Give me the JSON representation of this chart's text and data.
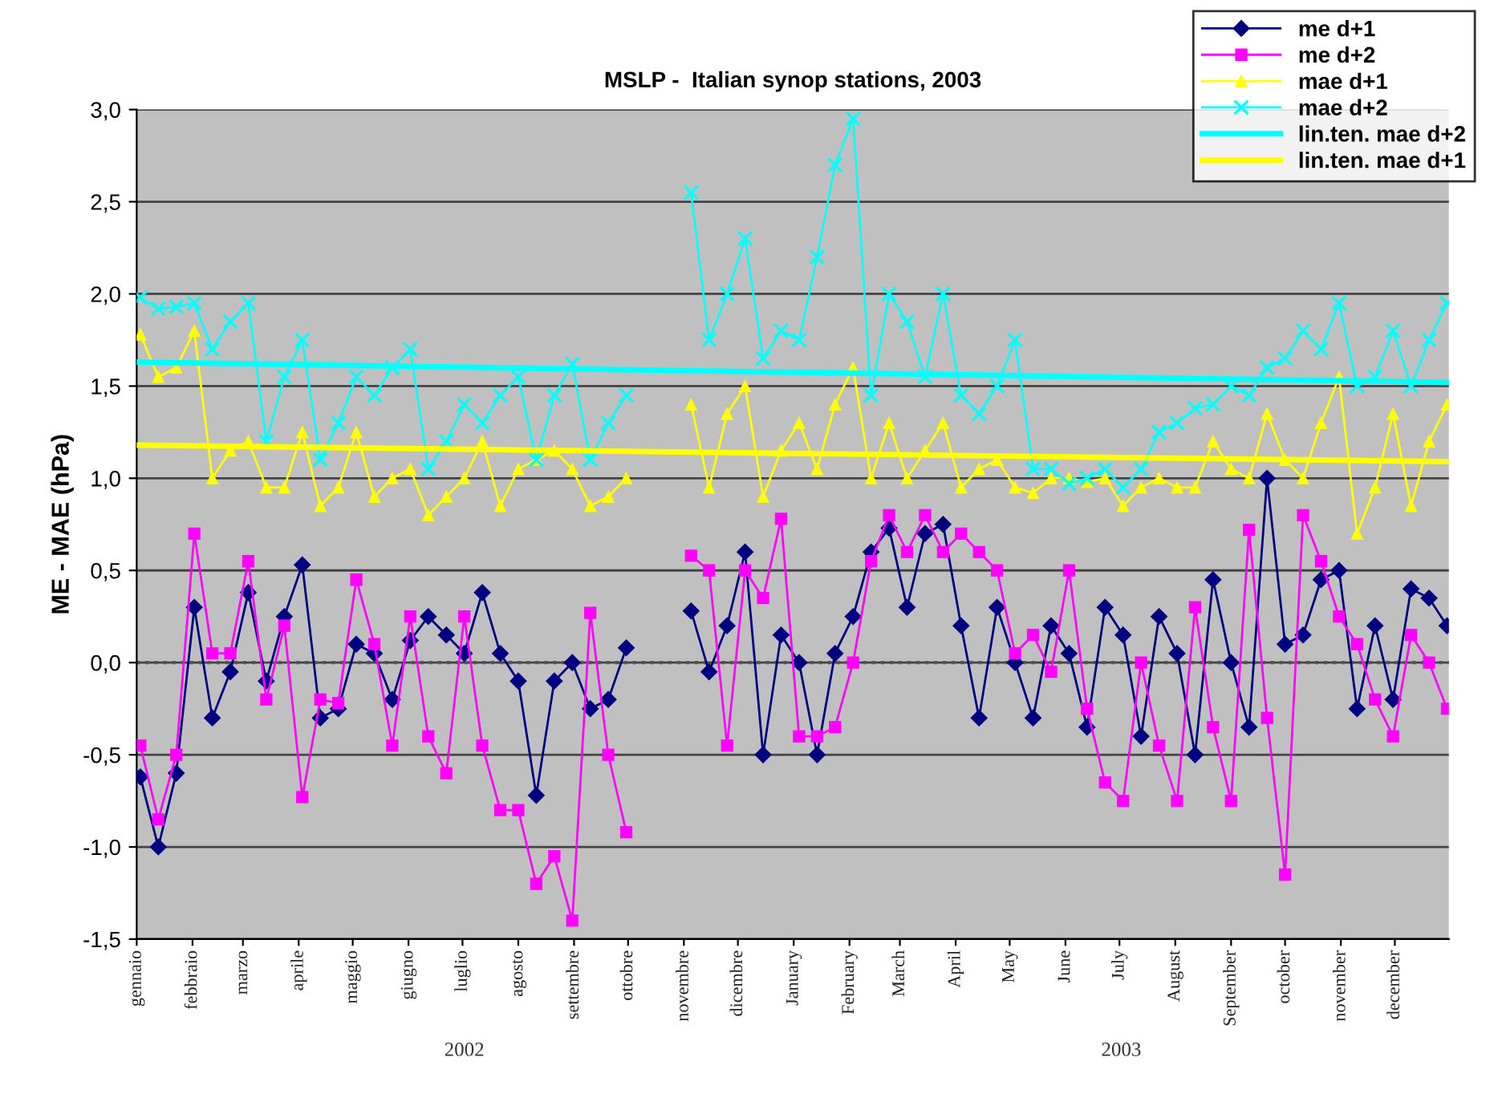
{
  "chart_data": {
    "type": "line",
    "title": "MSLP -  Italian synop stations, 2003",
    "ylabel": "ME - MAE (hPa)",
    "x": [
      "2002-01-03",
      "2002-01-13",
      "2002-01-23",
      "2002-02-02",
      "2002-02-12",
      "2002-02-22",
      "2002-03-04",
      "2002-03-14",
      "2002-03-24",
      "2002-04-03",
      "2002-04-13",
      "2002-04-23",
      "2002-05-03",
      "2002-05-13",
      "2002-05-23",
      "2002-06-02",
      "2002-06-12",
      "2002-06-22",
      "2002-07-02",
      "2002-07-12",
      "2002-07-22",
      "2002-08-01",
      "2002-08-11",
      "2002-08-21",
      "2002-08-31",
      "2002-09-10",
      "2002-09-20",
      "2002-09-30",
      "2002-10-20",
      "2002-11-05",
      "2002-11-15",
      "2002-11-25",
      "2002-12-05",
      "2002-12-15",
      "2002-12-25",
      "2003-01-04",
      "2003-01-14",
      "2003-01-24",
      "2003-02-03",
      "2003-02-13",
      "2003-02-23",
      "2003-03-05",
      "2003-03-15",
      "2003-03-25",
      "2003-04-04",
      "2003-04-14",
      "2003-04-24",
      "2003-05-04",
      "2003-05-14",
      "2003-05-24",
      "2003-06-03",
      "2003-06-13",
      "2003-06-23",
      "2003-07-03",
      "2003-07-13",
      "2003-07-23",
      "2003-08-02",
      "2003-08-12",
      "2003-08-22",
      "2003-09-01",
      "2003-09-11",
      "2003-09-21",
      "2003-10-01",
      "2003-10-11",
      "2003-10-21",
      "2003-10-31",
      "2003-11-10",
      "2003-11-20",
      "2003-11-30",
      "2003-12-10",
      "2003-12-20",
      "2003-12-30"
    ],
    "series": [
      {
        "name": "me d+1",
        "color": "#000080",
        "marker": "diamond",
        "values": [
          -0.62,
          -1.0,
          -0.6,
          0.3,
          -0.3,
          -0.05,
          0.38,
          -0.1,
          0.25,
          0.53,
          -0.3,
          -0.25,
          0.1,
          0.05,
          -0.2,
          0.12,
          0.25,
          0.15,
          0.05,
          0.38,
          0.05,
          -0.1,
          -0.72,
          -0.1,
          0.0,
          -0.25,
          -0.2,
          0.08,
          null,
          0.28,
          -0.05,
          0.2,
          0.6,
          -0.5,
          0.15,
          0.0,
          -0.5,
          0.05,
          0.25,
          0.6,
          0.73,
          0.3,
          0.7,
          0.75,
          0.2,
          -0.3,
          0.3,
          0.0,
          -0.3,
          0.2,
          0.05,
          -0.35,
          0.3,
          0.15,
          -0.4,
          0.25,
          0.05,
          -0.5,
          0.45,
          0.0,
          -0.35,
          1.0,
          0.1,
          0.15,
          0.45,
          0.5,
          -0.25,
          0.2,
          -0.2,
          0.4,
          0.35,
          0.2
        ]
      },
      {
        "name": "me d+2",
        "color": "#ff00ff",
        "marker": "square",
        "values": [
          -0.45,
          -0.85,
          -0.5,
          0.7,
          0.05,
          0.05,
          0.55,
          -0.2,
          0.2,
          -0.73,
          -0.2,
          -0.22,
          0.45,
          0.1,
          -0.45,
          0.25,
          -0.4,
          -0.6,
          0.25,
          -0.45,
          -0.8,
          -0.8,
          -1.2,
          -1.05,
          -1.4,
          0.27,
          -0.5,
          -0.92,
          null,
          0.58,
          0.5,
          -0.45,
          0.5,
          0.35,
          0.78,
          -0.4,
          -0.4,
          -0.35,
          0.0,
          0.55,
          0.8,
          0.6,
          0.8,
          0.6,
          0.7,
          0.6,
          0.5,
          0.05,
          0.15,
          -0.05,
          0.5,
          -0.25,
          -0.65,
          -0.75,
          0.0,
          -0.45,
          -0.75,
          0.3,
          -0.35,
          -0.75,
          0.72,
          -0.3,
          -1.15,
          0.8,
          0.55,
          0.25,
          0.1,
          -0.2,
          -0.4,
          0.15,
          0.0,
          -0.25
        ]
      },
      {
        "name": "mae d+1",
        "color": "#ffff00",
        "marker": "triangle",
        "values": [
          1.78,
          1.55,
          1.6,
          1.8,
          1.0,
          1.15,
          1.2,
          0.95,
          0.95,
          1.25,
          0.85,
          0.95,
          1.25,
          0.9,
          1.0,
          1.05,
          0.8,
          0.9,
          1.0,
          1.2,
          0.85,
          1.05,
          1.1,
          1.15,
          1.05,
          0.85,
          0.9,
          1.0,
          null,
          1.4,
          0.95,
          1.35,
          1.5,
          0.9,
          1.15,
          1.3,
          1.05,
          1.4,
          1.6,
          1.0,
          1.3,
          1.0,
          1.15,
          1.3,
          0.95,
          1.05,
          1.1,
          0.95,
          0.92,
          1.0,
          1.0,
          0.98,
          1.0,
          0.85,
          0.95,
          1.0,
          0.95,
          0.95,
          1.2,
          1.05,
          1.0,
          1.35,
          1.1,
          1.0,
          1.3,
          1.55,
          0.7,
          0.95,
          1.35,
          0.85,
          1.2,
          1.4
        ]
      },
      {
        "name": "mae d+2",
        "color": "#00ffff",
        "marker": "cross",
        "values": [
          1.98,
          1.92,
          1.93,
          1.95,
          1.7,
          1.85,
          1.95,
          1.2,
          1.55,
          1.75,
          1.1,
          1.3,
          1.55,
          1.45,
          1.6,
          1.7,
          1.05,
          1.2,
          1.4,
          1.3,
          1.45,
          1.55,
          1.1,
          1.45,
          1.62,
          1.1,
          1.3,
          1.45,
          null,
          2.55,
          1.75,
          2.0,
          2.3,
          1.65,
          1.8,
          1.75,
          2.2,
          2.7,
          2.95,
          1.45,
          2.0,
          1.85,
          1.55,
          2.0,
          1.45,
          1.35,
          1.5,
          1.75,
          1.05,
          1.05,
          0.97,
          1.0,
          1.05,
          0.95,
          1.05,
          1.25,
          1.3,
          1.38,
          1.4,
          1.5,
          1.45,
          1.6,
          1.65,
          1.8,
          1.7,
          1.95,
          1.5,
          1.55,
          1.8,
          1.5,
          1.75,
          1.95
        ]
      },
      {
        "name": "lin.ten. mae d+2",
        "color": "#00ffff",
        "marker": "none",
        "x": [
          "2002-01-01",
          "2003-12-31"
        ],
        "values": [
          1.63,
          1.52
        ]
      },
      {
        "name": "lin.ten. mae d+1",
        "color": "#ffff00",
        "marker": "none",
        "x": [
          "2002-01-01",
          "2003-12-31"
        ],
        "values": [
          1.18,
          1.09
        ]
      }
    ],
    "xlim": [
      "2002-01-01",
      "2003-12-31"
    ],
    "xticks": [
      {
        "value": "2002-01-01",
        "label": "gennaio"
      },
      {
        "value": "2002-02-01",
        "label": "febbraio"
      },
      {
        "value": "2002-03-01",
        "label": "marzo"
      },
      {
        "value": "2002-04-01",
        "label": "aprile"
      },
      {
        "value": "2002-05-01",
        "label": "maggio"
      },
      {
        "value": "2002-06-01",
        "label": "giugno"
      },
      {
        "value": "2002-07-01",
        "label": "luglio"
      },
      {
        "value": "2002-08-01",
        "label": "agosto"
      },
      {
        "value": "2002-09-01",
        "label": "settembre"
      },
      {
        "value": "2002-10-01",
        "label": "ottobre"
      },
      {
        "value": "2002-11-01",
        "label": "novembre"
      },
      {
        "value": "2002-12-01",
        "label": "dicembre"
      },
      {
        "value": "2003-01-01",
        "label": "January"
      },
      {
        "value": "2003-02-01",
        "label": "February"
      },
      {
        "value": "2003-03-01",
        "label": "March"
      },
      {
        "value": "2003-04-01",
        "label": "April"
      },
      {
        "value": "2003-05-01",
        "label": "May"
      },
      {
        "value": "2003-06-01",
        "label": "June"
      },
      {
        "value": "2003-07-01",
        "label": "July"
      },
      {
        "value": "2003-08-01",
        "label": "August"
      },
      {
        "value": "2003-09-01",
        "label": "September"
      },
      {
        "value": "2003-10-01",
        "label": "october"
      },
      {
        "value": "2003-11-01",
        "label": "november"
      },
      {
        "value": "2003-12-01",
        "label": "december"
      }
    ],
    "ylim": [
      -1.5,
      3.0
    ],
    "yticks": [
      {
        "value": -1.5,
        "label": "-1,5"
      },
      {
        "value": -1.0,
        "label": "-1,0"
      },
      {
        "value": -0.5,
        "label": "-0,5"
      },
      {
        "value": 0.0,
        "label": "0,0"
      },
      {
        "value": 0.5,
        "label": "0,5"
      },
      {
        "value": 1.0,
        "label": "1,0"
      },
      {
        "value": 1.5,
        "label": "1,5"
      },
      {
        "value": 2.0,
        "label": "2,0"
      },
      {
        "value": 2.5,
        "label": "2,5"
      },
      {
        "value": 3.0,
        "label": "3,0"
      }
    ],
    "annotations": [
      "2002",
      "2003"
    ],
    "ref_lines": [
      {
        "axis": "y",
        "value": 0.0,
        "color": "#555555",
        "line_style": "dotted"
      }
    ],
    "grid": "y",
    "legend": "top right",
    "line_style": "solid"
  }
}
